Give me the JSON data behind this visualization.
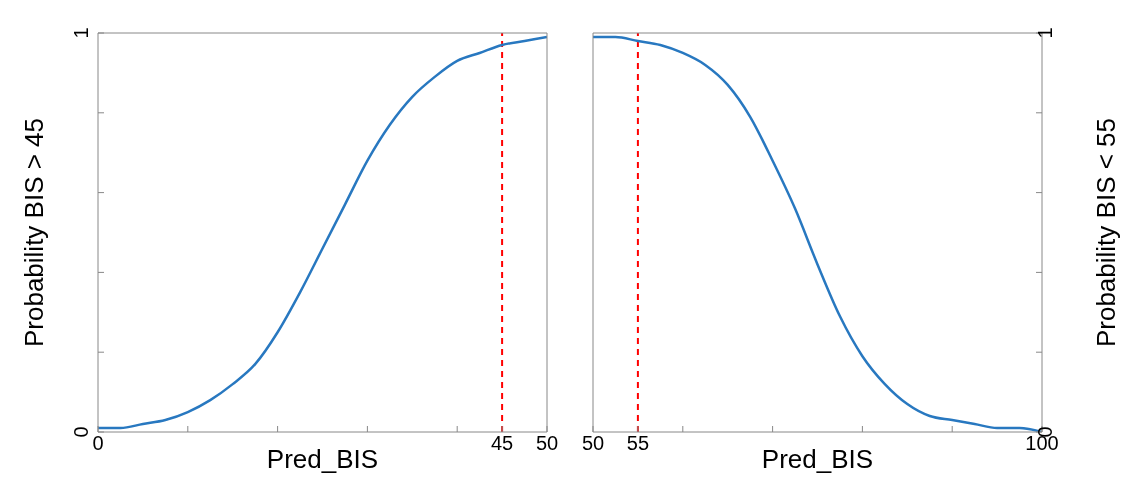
{
  "chart_data": [
    {
      "type": "line",
      "xlabel": "Pred_BIS",
      "ylabel": "Probability BIS > 45",
      "x": [
        0,
        2.5,
        5,
        7.5,
        10,
        12.5,
        15,
        17.5,
        20,
        22.5,
        25,
        27.5,
        30,
        32.5,
        35,
        37.5,
        40,
        42.5,
        45,
        47.5,
        50
      ],
      "series": [
        {
          "color": "#2878c0",
          "values": [
            0.01,
            0.01,
            0.02,
            0.03,
            0.05,
            0.08,
            0.12,
            0.17,
            0.25,
            0.35,
            0.46,
            0.57,
            0.68,
            0.77,
            0.84,
            0.89,
            0.93,
            0.95,
            0.97,
            0.98,
            0.99
          ]
        }
      ],
      "xlim": [
        0,
        50
      ],
      "xticks": [
        0,
        {
          "value": 10,
          "label": null
        },
        {
          "value": 20,
          "label": null
        },
        {
          "value": 30,
          "label": null
        },
        {
          "value": 40,
          "label": null
        },
        45,
        50
      ],
      "ylim": [
        0,
        1
      ],
      "yticks": [
        0,
        {
          "value": 0.2,
          "label": null
        },
        {
          "value": 0.4,
          "label": null
        },
        {
          "value": 0.6,
          "label": null
        },
        {
          "value": 0.8,
          "label": null
        },
        1
      ],
      "ref_lines": [
        {
          "axis": "x",
          "value": 45,
          "color": "#ff0000",
          "line_style": "dashed"
        }
      ],
      "grid": false,
      "legend": false,
      "marker": "none"
    },
    {
      "type": "line",
      "xlabel": "Pred_BIS",
      "y2label": "Probability BIS < 55",
      "x": [
        50,
        52.5,
        55,
        57.5,
        60,
        62.5,
        65,
        67.5,
        70,
        72.5,
        75,
        77.5,
        80,
        82.5,
        85,
        87.5,
        90,
        92.5,
        95,
        97.5,
        100
      ],
      "series": [
        {
          "color": "#2878c0",
          "axis": "y2",
          "values": [
            0.99,
            0.99,
            0.98,
            0.97,
            0.95,
            0.92,
            0.87,
            0.79,
            0.68,
            0.56,
            0.42,
            0.29,
            0.19,
            0.12,
            0.07,
            0.04,
            0.03,
            0.02,
            0.01,
            0.01,
            0.0
          ]
        }
      ],
      "xlim": [
        50,
        100
      ],
      "xticks": [
        50,
        55,
        {
          "value": 60,
          "label": null
        },
        {
          "value": 70,
          "label": null
        },
        {
          "value": 80,
          "label": null
        },
        {
          "value": 90,
          "label": null
        },
        100
      ],
      "y2lim": [
        0,
        1
      ],
      "y2ticks": [
        0,
        {
          "value": 0.2,
          "label": null
        },
        {
          "value": 0.4,
          "label": null
        },
        {
          "value": 0.6,
          "label": null
        },
        {
          "value": 0.8,
          "label": null
        },
        1
      ],
      "ref_lines": [
        {
          "axis": "x",
          "value": 55,
          "color": "#ff0000",
          "line_style": "dashed"
        }
      ],
      "grid": false,
      "legend": false,
      "marker": "none"
    }
  ]
}
